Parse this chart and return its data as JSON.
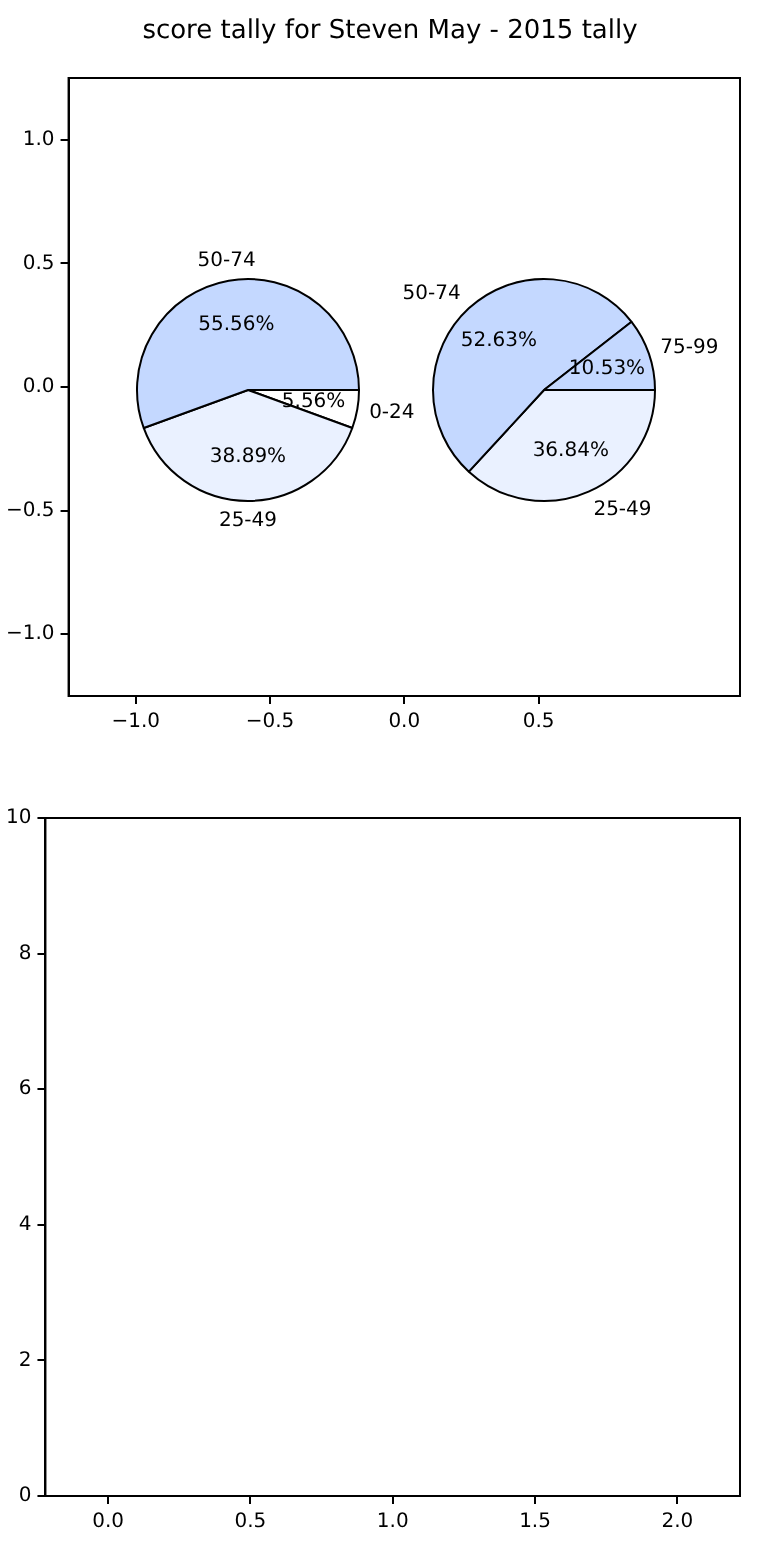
{
  "chart_data": [
    {
      "type": "scatter",
      "title": "score tally for Steven May - 2015 tally",
      "xlim": [
        -1.25,
        1.25
      ],
      "xticks": [
        {
          "value": -1,
          "label": "−1.0"
        },
        {
          "value": -0.5,
          "label": "−0.5"
        },
        {
          "value": 0,
          "label": "0.0"
        },
        {
          "value": 0.5,
          "label": "0.5"
        }
      ],
      "ylim": [
        -1.25,
        1.25
      ],
      "yticks": [
        {
          "value": -1,
          "label": "−1.0"
        },
        {
          "value": -0.5,
          "label": "−0.5"
        },
        {
          "value": 0,
          "label": "0.0"
        },
        {
          "value": 0.5,
          "label": "0.5"
        },
        {
          "value": 1,
          "label": "1.0"
        }
      ]
    },
    {
      "type": "pie",
      "categories": [
        "0-24",
        "25-49",
        "50-74"
      ],
      "values": [
        5.56,
        38.89,
        55.56
      ],
      "colors": [
        "#ffffff",
        "#eaf1ff",
        "#c4d8ff"
      ],
      "value_labels": [
        "5.56%",
        "38.89%",
        "55.56%"
      ]
    },
    {
      "type": "pie",
      "categories": [
        "25-49",
        "50-74",
        "75-99"
      ],
      "values": [
        36.84,
        52.63,
        10.53
      ],
      "colors": [
        "#eaf1ff",
        "#c4d8ff",
        "#c4d8ff"
      ],
      "value_labels": [
        "36.84%",
        "52.63%",
        "10.53%"
      ]
    },
    {
      "type": "scatter",
      "xlim": [
        -0.22,
        2.22
      ],
      "xticks": [
        {
          "value": 0,
          "label": "0.0"
        },
        {
          "value": 0.5,
          "label": "0.5"
        },
        {
          "value": 1,
          "label": "1.0"
        },
        {
          "value": 1.5,
          "label": "1.5"
        },
        {
          "value": 2,
          "label": "2.0"
        }
      ],
      "ylim": [
        0,
        10
      ],
      "yticks": [
        0,
        2,
        4,
        6,
        8,
        10
      ]
    }
  ]
}
